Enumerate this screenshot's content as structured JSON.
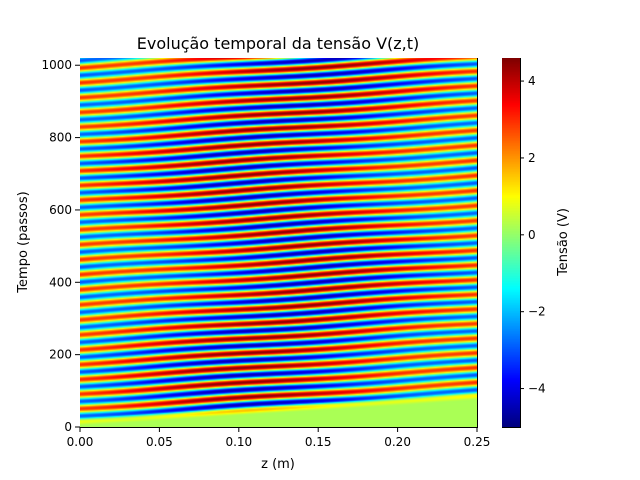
{
  "chart_data": {
    "type": "heatmap",
    "title": "Evolução temporal da tensão V(z,t)",
    "xlabel": "z (m)",
    "ylabel": "Tempo (passos)",
    "xlim": [
      0.0,
      0.25
    ],
    "ylim": [
      0,
      1020
    ],
    "xticks": [
      "0.00",
      "0.05",
      "0.10",
      "0.15",
      "0.20",
      "0.25"
    ],
    "yticks": [
      "0",
      "200",
      "400",
      "600",
      "800",
      "1000"
    ],
    "colormap": "jet",
    "colorbar": {
      "label": "Tensão (V)",
      "range": [
        -5.0,
        4.6
      ],
      "ticks": [
        "−4",
        "−2",
        "0",
        "2",
        "4"
      ]
    },
    "wave": {
      "amplitude_v": 4.5,
      "period_steps": 41,
      "wavefront_slope_steps_per_m": 280,
      "initial_value_v": 0.2
    }
  }
}
